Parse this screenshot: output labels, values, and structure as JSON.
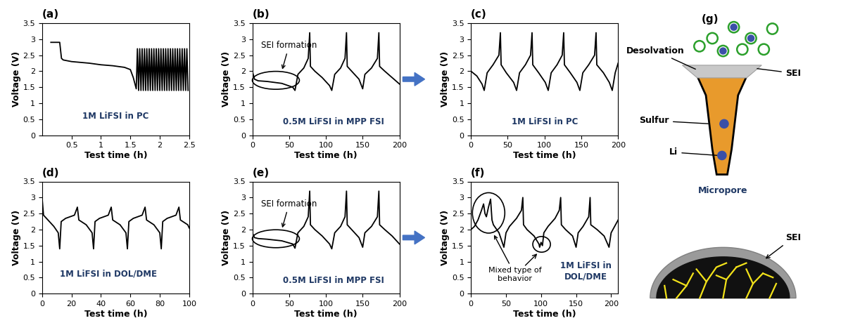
{
  "chart_data": [
    {
      "type": "line",
      "title": "(a)",
      "x_label": "Test time (h)",
      "y_label": "Voltage (V)",
      "color": "#000000",
      "x": [
        0.15,
        0.3,
        0.33,
        0.36,
        0.5,
        0.8,
        1.0,
        1.2,
        1.4,
        1.5,
        1.55,
        1.6,
        1.62,
        1.64,
        1.66,
        1.68,
        1.7,
        1.72,
        1.74,
        1.76,
        1.78,
        1.8,
        1.82,
        1.84,
        1.86,
        1.88,
        1.9,
        1.92,
        1.94,
        1.96,
        1.98,
        2.0,
        2.02,
        2.04,
        2.06,
        2.08,
        2.1,
        2.12,
        2.14,
        2.16,
        2.18,
        2.2,
        2.22,
        2.24,
        2.26,
        2.28,
        2.3,
        2.32,
        2.34,
        2.36,
        2.38,
        2.4,
        2.42,
        2.44,
        2.46,
        2.48
      ],
      "values": [
        2.9,
        2.9,
        2.4,
        2.35,
        2.3,
        2.25,
        2.2,
        2.17,
        2.12,
        2.05,
        1.8,
        1.45,
        2.7,
        1.4,
        2.7,
        1.4,
        2.7,
        1.4,
        2.7,
        1.4,
        2.7,
        1.4,
        2.7,
        1.4,
        2.7,
        1.4,
        2.7,
        1.4,
        2.7,
        1.4,
        2.7,
        1.4,
        2.7,
        1.4,
        2.7,
        1.4,
        2.7,
        1.4,
        2.7,
        1.4,
        2.7,
        1.4,
        2.7,
        1.4,
        2.7,
        1.4,
        2.7,
        1.4,
        2.7,
        1.4,
        2.7,
        1.4,
        2.7,
        1.4,
        2.7,
        1.4
      ],
      "xlim": [
        0,
        2.5
      ],
      "ylim": [
        0,
        3.5
      ],
      "xticks": [
        0.5,
        1,
        1.5,
        2,
        2.5
      ],
      "yticks": [
        0,
        0.5,
        1,
        1.5,
        2,
        2.5,
        3,
        3.5
      ],
      "annotations": [
        "1M LiFSI in PC"
      ]
    },
    {
      "type": "line",
      "title": "(b)",
      "x_label": "Test time (h)",
      "y_label": "Voltage (V)",
      "color": "#000000",
      "x": [
        0,
        3,
        8,
        20,
        40,
        55,
        58,
        62,
        70,
        76,
        78,
        79,
        85,
        95,
        105,
        108,
        112,
        120,
        126,
        128,
        129,
        135,
        145,
        150,
        153,
        162,
        170,
        172,
        173,
        180,
        190,
        200
      ],
      "values": [
        2.0,
        1.75,
        1.7,
        1.68,
        1.62,
        1.5,
        1.4,
        1.9,
        2.1,
        2.4,
        3.2,
        2.15,
        2.0,
        1.8,
        1.55,
        1.4,
        1.9,
        2.1,
        2.4,
        3.2,
        2.15,
        2.0,
        1.75,
        1.45,
        1.9,
        2.1,
        2.4,
        3.2,
        2.15,
        2.0,
        1.8,
        1.6
      ],
      "xlim": [
        0,
        200
      ],
      "ylim": [
        0,
        3.5
      ],
      "xticks": [
        0,
        50,
        100,
        150,
        200
      ],
      "yticks": [
        0,
        0.5,
        1,
        1.5,
        2,
        2.5,
        3,
        3.5
      ],
      "annotations": [
        "SEI formation",
        "0.5M LiFSI in MPP FSI"
      ]
    },
    {
      "type": "line",
      "title": "(c)",
      "x_label": "Test time (h)",
      "y_label": "Voltage (V)",
      "color": "#000000",
      "x": [
        0,
        8,
        15,
        18,
        22,
        30,
        38,
        40,
        41,
        48,
        58,
        62,
        66,
        74,
        81,
        83,
        84,
        92,
        101,
        105,
        109,
        117,
        124,
        126,
        127,
        135,
        144,
        148,
        152,
        160,
        168,
        170,
        171,
        180,
        188,
        192,
        196,
        200
      ],
      "values": [
        2.0,
        1.85,
        1.6,
        1.4,
        1.95,
        2.2,
        2.5,
        3.2,
        2.2,
        1.95,
        1.65,
        1.4,
        1.95,
        2.2,
        2.5,
        3.2,
        2.2,
        1.95,
        1.65,
        1.4,
        1.95,
        2.2,
        2.5,
        3.2,
        2.2,
        1.95,
        1.65,
        1.4,
        1.95,
        2.2,
        2.5,
        3.2,
        2.2,
        1.95,
        1.65,
        1.4,
        1.95,
        2.25
      ],
      "xlim": [
        0,
        200
      ],
      "ylim": [
        0,
        3.5
      ],
      "xticks": [
        0,
        50,
        100,
        150,
        200
      ],
      "yticks": [
        0,
        0.5,
        1,
        1.5,
        2,
        2.5,
        3,
        3.5
      ],
      "annotations": [
        "1M LiFSI in PC"
      ]
    },
    {
      "type": "line",
      "title": "(d)",
      "x_label": "Test time (h)",
      "y_label": "Voltage (V)",
      "color": "#000000",
      "x": [
        0,
        1,
        3,
        8,
        11,
        12,
        13,
        16,
        22,
        24,
        25,
        30,
        34,
        35,
        36,
        39,
        45,
        47,
        48,
        53,
        57,
        58,
        59,
        62,
        68,
        70,
        71,
        76,
        80,
        81,
        82,
        85,
        91,
        93,
        94,
        99,
        100
      ],
      "values": [
        3.0,
        2.45,
        2.35,
        2.1,
        1.9,
        1.4,
        2.25,
        2.35,
        2.45,
        2.7,
        2.3,
        2.15,
        1.9,
        1.4,
        2.25,
        2.35,
        2.45,
        2.7,
        2.3,
        2.15,
        1.9,
        1.4,
        2.25,
        2.35,
        2.45,
        2.7,
        2.3,
        2.15,
        1.9,
        1.4,
        2.25,
        2.35,
        2.45,
        2.7,
        2.3,
        2.15,
        2.05
      ],
      "xlim": [
        0,
        100
      ],
      "ylim": [
        0,
        3.5
      ],
      "xticks": [
        0,
        20,
        40,
        60,
        80,
        100
      ],
      "yticks": [
        0,
        0.5,
        1,
        1.5,
        2,
        2.5,
        3,
        3.5
      ],
      "annotations": [
        "1M LiFSI in DOL/DME"
      ]
    },
    {
      "type": "line",
      "title": "(e)",
      "x_label": "Test time (h)",
      "y_label": "Voltage (V)",
      "color": "#000000",
      "x": [
        0,
        3,
        8,
        20,
        40,
        55,
        58,
        62,
        70,
        76,
        78,
        79,
        85,
        95,
        105,
        108,
        112,
        120,
        126,
        128,
        129,
        135,
        145,
        150,
        153,
        162,
        170,
        172,
        173,
        180,
        190,
        200
      ],
      "values": [
        1.9,
        1.75,
        1.72,
        1.7,
        1.65,
        1.55,
        1.42,
        1.9,
        2.1,
        2.4,
        3.2,
        2.15,
        2.0,
        1.8,
        1.55,
        1.4,
        1.9,
        2.1,
        2.4,
        3.2,
        2.15,
        2.0,
        1.75,
        1.45,
        1.9,
        2.1,
        2.4,
        3.2,
        2.15,
        2.0,
        1.8,
        1.55
      ],
      "xlim": [
        0,
        200
      ],
      "ylim": [
        0,
        3.5
      ],
      "xticks": [
        0,
        50,
        100,
        150,
        200
      ],
      "yticks": [
        0,
        0.5,
        1,
        1.5,
        2,
        2.5,
        3,
        3.5
      ],
      "annotations": [
        "SEI formation",
        "0.5M LiFSI in MPP FSI"
      ]
    },
    {
      "type": "line",
      "title": "(f)",
      "x_label": "Test time (h)",
      "y_label": "Voltage (V)",
      "color": "#000000",
      "x": [
        0,
        5,
        10,
        15,
        18,
        20,
        22,
        25,
        28,
        30,
        32,
        40,
        47,
        50,
        55,
        65,
        72,
        74,
        75,
        80,
        90,
        97,
        98,
        100,
        102,
        104,
        110,
        120,
        126,
        128,
        129,
        135,
        145,
        150,
        153,
        160,
        168,
        170,
        171,
        180,
        190,
        197,
        200,
        205,
        210
      ],
      "values": [
        2.0,
        2.1,
        2.3,
        2.6,
        2.8,
        2.5,
        2.4,
        2.7,
        2.95,
        2.3,
        2.15,
        1.9,
        1.45,
        1.9,
        2.1,
        2.35,
        2.6,
        3.0,
        2.15,
        2.0,
        1.8,
        1.55,
        1.45,
        1.6,
        1.5,
        1.9,
        2.1,
        2.35,
        2.6,
        3.0,
        2.15,
        2.0,
        1.8,
        1.45,
        1.9,
        2.1,
        2.4,
        3.0,
        2.15,
        2.0,
        1.8,
        1.45,
        1.9,
        2.1,
        2.3
      ],
      "xlim": [
        0,
        210
      ],
      "ylim": [
        0,
        3.5
      ],
      "xticks": [
        0,
        50,
        100,
        150,
        200
      ],
      "yticks": [
        0,
        0.5,
        1,
        1.5,
        2,
        2.5,
        3,
        3.5
      ],
      "annotations": [
        "Mixed type of\nbehavior",
        "1M LiFSI in\nDOL/DME"
      ]
    }
  ],
  "diagram": {
    "label": "(g)",
    "desolvation": "Desolvation",
    "sei_pore": "SEI",
    "sulfur": "Sulfur",
    "li": "Li",
    "micropore": "Micropore",
    "sei_particle": "SEI"
  }
}
